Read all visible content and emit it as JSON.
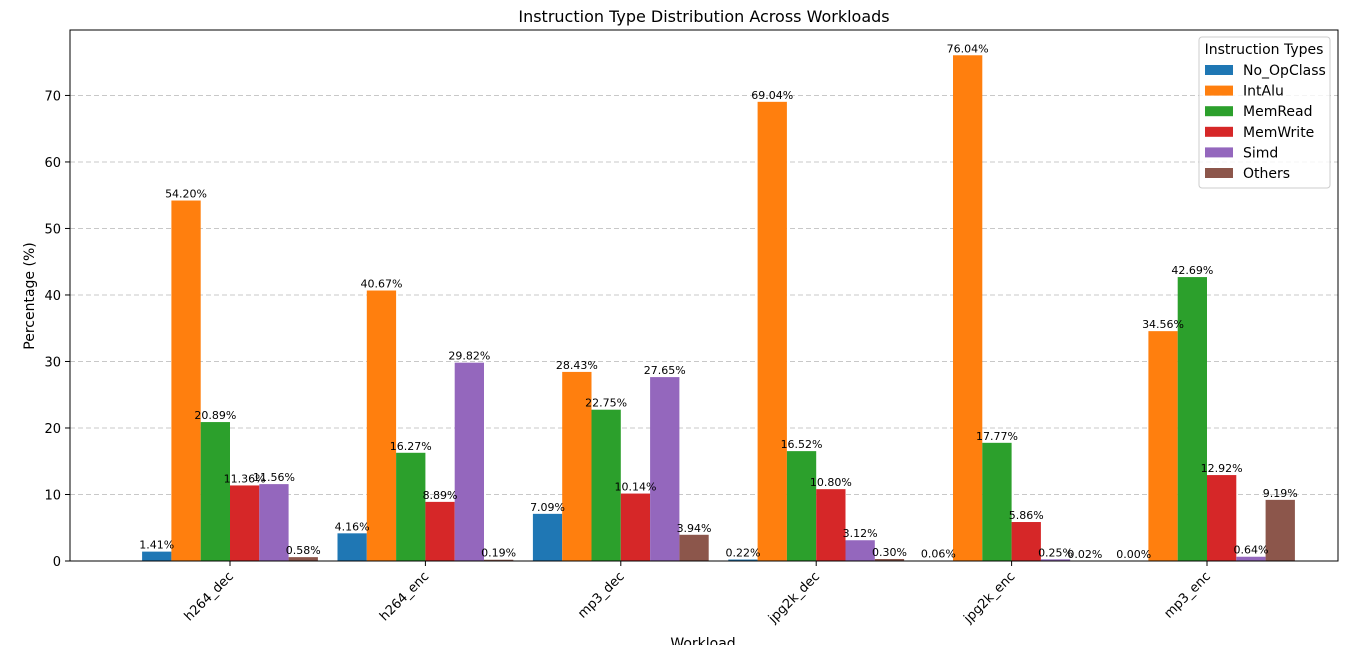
{
  "chart_data": {
    "type": "bar",
    "title": "Instruction Type Distribution Across Workloads",
    "xlabel": "Workload",
    "ylabel": "Percentage (%)",
    "ylim": [
      0,
      80
    ],
    "yticks": [
      0,
      10,
      20,
      30,
      40,
      50,
      60,
      70
    ],
    "grid": "y-dashed",
    "legend_title": "Instruction Types",
    "legend_position": "top-right",
    "categories": [
      "h264_dec",
      "h264_enc",
      "mp3_dec",
      "jpg2k_dec",
      "jpg2k_enc",
      "mp3_enc"
    ],
    "series": [
      {
        "name": "No_OpClass",
        "color": "#1f77b4",
        "values": [
          1.41,
          4.16,
          7.09,
          0.22,
          0.06,
          0.0
        ],
        "labels": [
          "1.41%",
          "4.16%",
          "7.09%",
          "0.22%",
          "0.06%",
          "0.00%"
        ]
      },
      {
        "name": "IntAlu",
        "color": "#ff7f0e",
        "values": [
          54.2,
          40.67,
          28.43,
          69.04,
          76.04,
          34.56
        ],
        "labels": [
          "54.20%",
          "40.67%",
          "28.43%",
          "69.04%",
          "76.04%",
          "34.56%"
        ]
      },
      {
        "name": "MemRead",
        "color": "#2ca02c",
        "values": [
          20.89,
          16.27,
          22.75,
          16.52,
          17.77,
          42.69
        ],
        "labels": [
          "20.89%",
          "16.27%",
          "22.75%",
          "16.52%",
          "17.77%",
          "42.69%"
        ]
      },
      {
        "name": "MemWrite",
        "color": "#d62728",
        "values": [
          11.36,
          8.89,
          10.14,
          10.8,
          5.86,
          12.92
        ],
        "labels": [
          "11.36%",
          "8.89%",
          "10.14%",
          "10.80%",
          "5.86%",
          "12.92%"
        ]
      },
      {
        "name": "Simd",
        "color": "#9467bd",
        "values": [
          11.56,
          29.82,
          27.65,
          3.12,
          0.25,
          0.64
        ],
        "labels": [
          "11.56%",
          "29.82%",
          "27.65%",
          "3.12%",
          "0.25%",
          "0.64%"
        ]
      },
      {
        "name": "Others",
        "color": "#8c564b",
        "values": [
          0.58,
          0.19,
          3.94,
          0.3,
          0.02,
          9.19
        ],
        "labels": [
          "0.58%",
          "0.19%",
          "3.94%",
          "0.30%",
          "0.02%",
          "9.19%"
        ]
      }
    ]
  }
}
